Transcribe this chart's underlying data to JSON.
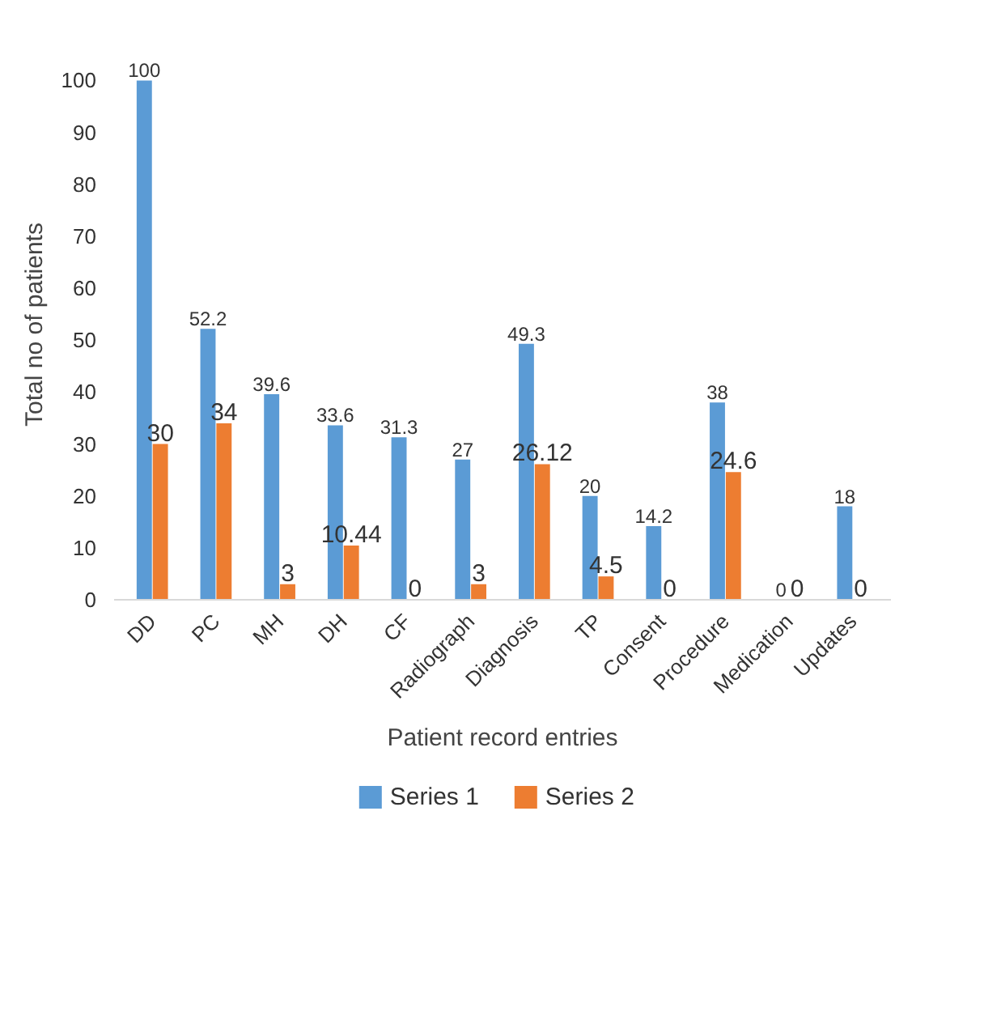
{
  "chart_data": {
    "type": "bar",
    "xlabel": "Patient record entries",
    "ylabel": "Total no of patients",
    "categories": [
      "DD",
      "PC",
      "MH",
      "DH",
      "CF",
      "Radiograph",
      "Diagnosis",
      "TP",
      "Consent",
      "Procedure",
      "Medication",
      "Updates"
    ],
    "series": [
      {
        "name": "Series 1",
        "color": "#5b9bd5",
        "values": [
          100,
          52.2,
          39.6,
          33.6,
          31.3,
          27,
          49.3,
          20,
          14.2,
          38,
          0,
          18
        ]
      },
      {
        "name": "Series 2",
        "color": "#ed7d31",
        "values": [
          30,
          34,
          3,
          10.44,
          0,
          3,
          26.12,
          4.5,
          0,
          24.6,
          0,
          0
        ]
      }
    ],
    "ylim": [
      0,
      100
    ],
    "yticks": [
      0,
      10,
      20,
      30,
      40,
      50,
      60,
      70,
      80,
      90,
      100
    ],
    "data_labels": true,
    "grid": false,
    "legend": "bottom"
  }
}
